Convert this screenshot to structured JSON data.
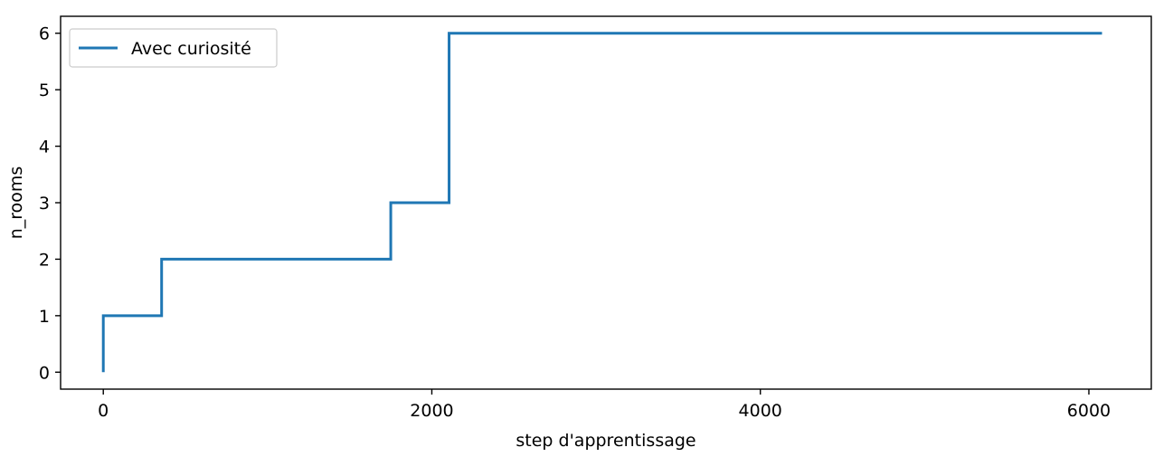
{
  "chart_data": {
    "type": "line",
    "title": "",
    "xlabel": "step d'apprentissage",
    "ylabel": "n_rooms",
    "xlim": [
      -260,
      6380
    ],
    "ylim": [
      -0.3,
      6.3
    ],
    "xticks": [
      0,
      2000,
      4000,
      6000
    ],
    "yticks": [
      0,
      1,
      2,
      3,
      4,
      5,
      6
    ],
    "grid": false,
    "legend_position": "top-left",
    "series": [
      {
        "name": "Avec curiosité",
        "color": "#1f77b4",
        "step": true,
        "x": [
          0,
          0,
          355,
          355,
          1750,
          1750,
          2105,
          2105,
          6080
        ],
        "y": [
          0,
          1,
          1,
          2,
          2,
          3,
          3,
          6,
          6
        ]
      }
    ]
  }
}
